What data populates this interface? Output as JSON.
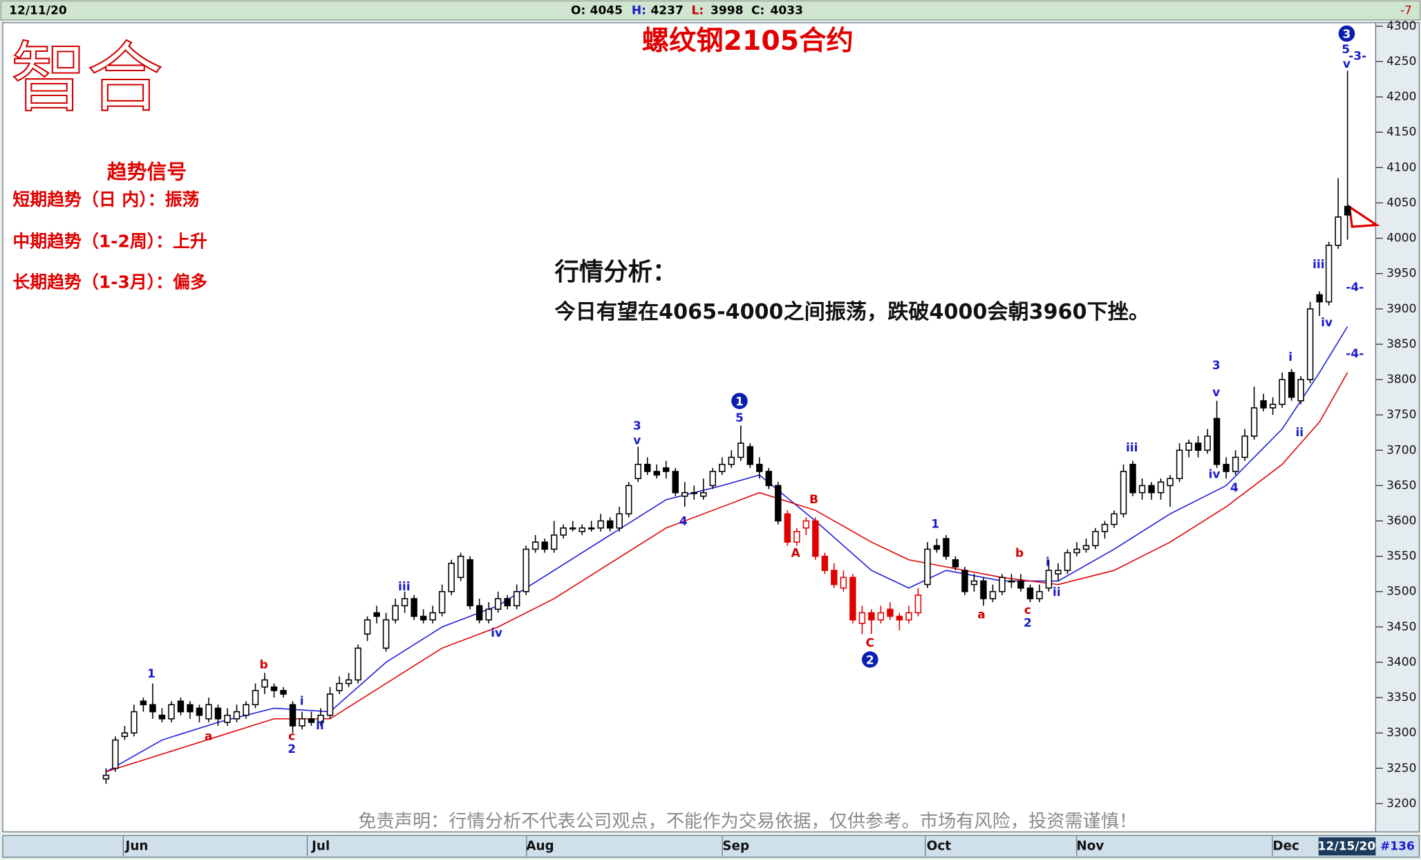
{
  "header": {
    "date": "12/11/20",
    "quotes": [
      {
        "label": "O:",
        "value": 4045
      },
      {
        "label": "H:",
        "value": 4237
      },
      {
        "label": "L:",
        "value": 3998
      },
      {
        "label": "C:",
        "value": 4033
      }
    ],
    "change": -7
  },
  "logo": "智合",
  "trend_signals": {
    "title": "趋势信号",
    "rows": [
      "短期趋势（日 内）：振荡",
      "中期趋势（1-2周）：上升",
      "长期趋势（1-3月）：偏多"
    ]
  },
  "analysis": {
    "title": "行情分析：",
    "text": "今日有望在4065-4000之间振荡，跌破4000会朝3960下挫。"
  },
  "disclaimer": "免责声明：行情分析不代表公司观点，不能作为交易依据，仅供参考。市场有风险，投资需谨慎！",
  "footer": {
    "date": "12/15/20",
    "count": "#136"
  },
  "chart_data": {
    "type": "candlestick",
    "title": "螺纹钢2105合约",
    "months": [
      "Jun",
      "Jul",
      "Aug",
      "Sep",
      "Oct",
      "Nov",
      "Dec"
    ],
    "ylim": [
      3160,
      4305
    ],
    "yticks": [
      3200,
      3250,
      3300,
      3350,
      3400,
      3450,
      3500,
      3550,
      3600,
      3650,
      3700,
      3750,
      3800,
      3850,
      3900,
      3950,
      4000,
      4050,
      4100,
      4150,
      4200,
      4250,
      4300
    ],
    "series": [
      {
        "color": "#000000",
        "ohlc": [
          [
            3235,
            3250,
            3228,
            3240
          ],
          [
            3250,
            3295,
            3245,
            3290
          ],
          [
            3295,
            3310,
            3290,
            3300
          ],
          [
            3300,
            3340,
            3295,
            3330
          ],
          [
            3345,
            3350,
            3330,
            3340
          ],
          [
            3340,
            3370,
            3320,
            3330
          ],
          [
            3325,
            3335,
            3315,
            3320
          ],
          [
            3320,
            3345,
            3315,
            3340
          ],
          [
            3345,
            3350,
            3325,
            3330
          ],
          [
            3340,
            3345,
            3320,
            3330
          ],
          [
            3335,
            3340,
            3315,
            3325
          ],
          [
            3320,
            3350,
            3315,
            3340
          ],
          [
            3335,
            3340,
            3310,
            3320
          ],
          [
            3315,
            3335,
            3310,
            3325
          ],
          [
            3320,
            3340,
            3315,
            3330
          ],
          [
            3325,
            3345,
            3320,
            3340
          ],
          [
            3340,
            3370,
            3335,
            3360
          ],
          [
            3365,
            3385,
            3355,
            3375
          ],
          [
            3365,
            3370,
            3350,
            3360
          ],
          [
            3360,
            3365,
            3350,
            3355
          ],
          [
            3340,
            3345,
            3300,
            3310
          ],
          [
            3310,
            3330,
            3305,
            3320
          ],
          [
            3320,
            3330,
            3310,
            3315
          ],
          [
            3315,
            3335,
            3310,
            3325
          ],
          [
            3325,
            3365,
            3320,
            3355
          ],
          [
            3360,
            3380,
            3355,
            3370
          ],
          [
            3370,
            3385,
            3365,
            3375
          ],
          [
            3375,
            3425,
            3370,
            3420
          ],
          [
            3440,
            3465,
            3430,
            3460
          ],
          [
            3470,
            3480,
            3455,
            3465
          ],
          [
            3420,
            3470,
            3415,
            3460
          ],
          [
            3460,
            3490,
            3455,
            3480
          ],
          [
            3480,
            3500,
            3470,
            3490
          ],
          [
            3490,
            3495,
            3460,
            3465
          ],
          [
            3465,
            3475,
            3455,
            3460
          ],
          [
            3460,
            3480,
            3455,
            3470
          ],
          [
            3470,
            3510,
            3465,
            3500
          ],
          [
            3500,
            3545,
            3495,
            3540
          ],
          [
            3520,
            3555,
            3515,
            3550
          ],
          [
            3545,
            3550,
            3475,
            3480
          ],
          [
            3480,
            3490,
            3455,
            3460
          ],
          [
            3460,
            3485,
            3455,
            3475
          ],
          [
            3475,
            3500,
            3470,
            3490
          ],
          [
            3490,
            3495,
            3475,
            3480
          ],
          [
            3480,
            3510,
            3475,
            3500
          ],
          [
            3500,
            3565,
            3495,
            3560
          ],
          [
            3560,
            3580,
            3555,
            3570
          ],
          [
            3570,
            3575,
            3555,
            3560
          ],
          [
            3560,
            3600,
            3555,
            3580
          ],
          [
            3580,
            3595,
            3575,
            3590
          ],
          [
            3590,
            3600,
            3585,
            3590
          ],
          [
            3585,
            3595,
            3580,
            3590
          ],
          [
            3590,
            3600,
            3585,
            3590
          ],
          [
            3590,
            3610,
            3585,
            3600
          ],
          [
            3600,
            3605,
            3585,
            3590
          ],
          [
            3590,
            3620,
            3585,
            3610
          ],
          [
            3610,
            3655,
            3605,
            3650
          ],
          [
            3660,
            3705,
            3655,
            3680
          ],
          [
            3680,
            3690,
            3665,
            3670
          ],
          [
            3670,
            3680,
            3660,
            3665
          ],
          [
            3675,
            3685,
            3660,
            3670
          ],
          [
            3670,
            3675,
            3635,
            3640
          ],
          [
            3635,
            3655,
            3620,
            3640
          ],
          [
            3640,
            3650,
            3630,
            3640
          ],
          [
            3635,
            3660,
            3630,
            3640
          ],
          [
            3650,
            3675,
            3645,
            3670
          ],
          [
            3670,
            3690,
            3665,
            3680
          ],
          [
            3680,
            3700,
            3675,
            3690
          ],
          [
            3690,
            3735,
            3685,
            3710
          ],
          [
            3705,
            3710,
            3675,
            3680
          ],
          [
            3680,
            3690,
            3660,
            3670
          ],
          [
            3670,
            3675,
            3645,
            3650
          ],
          [
            3650,
            3655,
            3595,
            3600
          ]
        ]
      },
      {
        "color": "#e00000",
        "ohlc": [
          [
            3610,
            3615,
            3565,
            3570
          ],
          [
            3570,
            3590,
            3565,
            3585
          ],
          [
            3590,
            3605,
            3580,
            3600
          ],
          [
            3600,
            3605,
            3545,
            3550
          ],
          [
            3550,
            3555,
            3525,
            3530
          ],
          [
            3530,
            3540,
            3505,
            3510
          ],
          [
            3505,
            3530,
            3500,
            3520
          ],
          [
            3520,
            3525,
            3455,
            3460
          ],
          [
            3455,
            3480,
            3440,
            3470
          ],
          [
            3470,
            3475,
            3440,
            3460
          ],
          [
            3460,
            3480,
            3455,
            3470
          ],
          [
            3475,
            3485,
            3460,
            3465
          ],
          [
            3465,
            3470,
            3445,
            3460
          ],
          [
            3460,
            3480,
            3455,
            3470
          ],
          [
            3470,
            3505,
            3465,
            3495
          ]
        ]
      },
      {
        "color": "#000000",
        "ohlc": [
          [
            3510,
            3570,
            3505,
            3560
          ],
          [
            3565,
            3575,
            3555,
            3560
          ],
          [
            3575,
            3580,
            3545,
            3550
          ],
          [
            3545,
            3550,
            3530,
            3535
          ],
          [
            3530,
            3535,
            3495,
            3500
          ],
          [
            3510,
            3525,
            3500,
            3515
          ],
          [
            3515,
            3520,
            3480,
            3490
          ],
          [
            3490,
            3510,
            3485,
            3500
          ],
          [
            3500,
            3525,
            3495,
            3520
          ],
          [
            3515,
            3525,
            3505,
            3515
          ],
          [
            3515,
            3525,
            3500,
            3505
          ],
          [
            3505,
            3510,
            3485,
            3490
          ],
          [
            3490,
            3510,
            3485,
            3500
          ],
          [
            3505,
            3545,
            3500,
            3530
          ],
          [
            3525,
            3540,
            3515,
            3530
          ],
          [
            3530,
            3560,
            3525,
            3555
          ],
          [
            3555,
            3570,
            3550,
            3560
          ],
          [
            3560,
            3575,
            3555,
            3565
          ],
          [
            3565,
            3590,
            3560,
            3585
          ],
          [
            3585,
            3600,
            3575,
            3595
          ],
          [
            3595,
            3615,
            3590,
            3610
          ],
          [
            3610,
            3680,
            3605,
            3670
          ],
          [
            3680,
            3685,
            3635,
            3640
          ],
          [
            3640,
            3660,
            3630,
            3650
          ],
          [
            3650,
            3655,
            3630,
            3640
          ],
          [
            3640,
            3660,
            3630,
            3655
          ],
          [
            3650,
            3665,
            3620,
            3660
          ],
          [
            3660,
            3710,
            3655,
            3700
          ],
          [
            3700,
            3715,
            3690,
            3710
          ],
          [
            3710,
            3720,
            3690,
            3700
          ],
          [
            3700,
            3730,
            3695,
            3720
          ],
          [
            3745,
            3770,
            3675,
            3680
          ],
          [
            3680,
            3690,
            3660,
            3670
          ],
          [
            3670,
            3700,
            3665,
            3690
          ],
          [
            3690,
            3730,
            3685,
            3720
          ],
          [
            3720,
            3790,
            3715,
            3760
          ],
          [
            3770,
            3780,
            3755,
            3760
          ],
          [
            3760,
            3775,
            3750,
            3765
          ],
          [
            3765,
            3810,
            3760,
            3800
          ],
          [
            3810,
            3815,
            3770,
            3775
          ],
          [
            3770,
            3805,
            3765,
            3800
          ],
          [
            3800,
            3910,
            3795,
            3900
          ],
          [
            3920,
            3925,
            3890,
            3910
          ],
          [
            3910,
            3995,
            3905,
            3990
          ],
          [
            3990,
            4085,
            3985,
            4030
          ],
          [
            4045,
            4237,
            3998,
            4033
          ]
        ]
      }
    ],
    "moving_averages": [
      {
        "color": "#1a1add",
        "x": [
          0,
          6,
          12,
          18,
          24,
          30,
          36,
          42,
          48,
          54,
          60,
          66,
          70,
          76,
          82,
          86,
          90,
          96,
          102,
          108,
          114,
          120,
          126,
          130,
          133
        ],
        "values": [
          3245,
          3290,
          3315,
          3335,
          3330,
          3400,
          3450,
          3480,
          3530,
          3580,
          3630,
          3650,
          3665,
          3600,
          3530,
          3505,
          3530,
          3515,
          3515,
          3560,
          3610,
          3650,
          3730,
          3810,
          3875
        ]
      },
      {
        "color": "#e00000",
        "x": [
          0,
          6,
          12,
          18,
          24,
          30,
          36,
          42,
          48,
          54,
          60,
          66,
          70,
          76,
          82,
          86,
          90,
          96,
          102,
          108,
          114,
          120,
          126,
          130,
          133
        ],
        "values": [
          3245,
          3270,
          3295,
          3320,
          3320,
          3370,
          3420,
          3450,
          3490,
          3540,
          3590,
          3620,
          3640,
          3615,
          3570,
          3545,
          3535,
          3520,
          3510,
          3530,
          3570,
          3620,
          3680,
          3740,
          3810
        ]
      }
    ],
    "annotations": [
      {
        "text": "1",
        "color": "#1a1acc"
      },
      {
        "text": "b",
        "color": "#d00000"
      },
      {
        "text": "a",
        "color": "#d00000"
      },
      {
        "text": "i",
        "color": "#1a1acc"
      },
      {
        "text": "c",
        "color": "#d00000"
      },
      {
        "text": "2",
        "color": "#1a1acc"
      },
      {
        "text": "ii",
        "color": "#1a1acc"
      },
      {
        "text": "iii",
        "color": "#1a1acc"
      },
      {
        "text": "iv",
        "color": "#1a1acc"
      },
      {
        "text": "3",
        "color": "#1a1acc"
      },
      {
        "text": "v",
        "color": "#1a1acc"
      },
      {
        "text": "4",
        "color": "#1a1acc"
      },
      {
        "text": "5",
        "color": "#1a1acc"
      },
      {
        "text": "B",
        "color": "#d00000"
      },
      {
        "text": "A",
        "color": "#d00000"
      },
      {
        "text": "C",
        "color": "#d00000"
      },
      {
        "text": "1",
        "color": "#1a1acc"
      },
      {
        "text": "a",
        "color": "#d00000"
      },
      {
        "text": "b",
        "color": "#d00000"
      },
      {
        "text": "c",
        "color": "#d00000"
      },
      {
        "text": "2",
        "color": "#1a1acc"
      },
      {
        "text": "i",
        "color": "#1a1acc"
      },
      {
        "text": "ii",
        "color": "#1a1acc"
      },
      {
        "text": "iii",
        "color": "#1a1acc"
      },
      {
        "text": "iv",
        "color": "#1a1acc"
      },
      {
        "text": "3",
        "color": "#1a1acc"
      },
      {
        "text": "v",
        "color": "#1a1acc"
      },
      {
        "text": "4",
        "color": "#1a1acc"
      },
      {
        "text": "i",
        "color": "#1a1acc"
      },
      {
        "text": "ii",
        "color": "#1a1acc"
      },
      {
        "text": "iii",
        "color": "#1a1acc"
      },
      {
        "text": "iv",
        "color": "#1a1acc"
      },
      {
        "text": "5",
        "color": "#1a1acc"
      },
      {
        "text": "v",
        "color": "#1a1acc"
      },
      {
        "text": "-3-",
        "color": "#1a1acc"
      },
      {
        "text": "-4-",
        "color": "#1a1acc"
      },
      {
        "text": "-4-",
        "color": "#1a1acc"
      }
    ],
    "wave_markers": [
      "1",
      "2",
      "3"
    ],
    "marker_color": "#0a1fb0"
  }
}
